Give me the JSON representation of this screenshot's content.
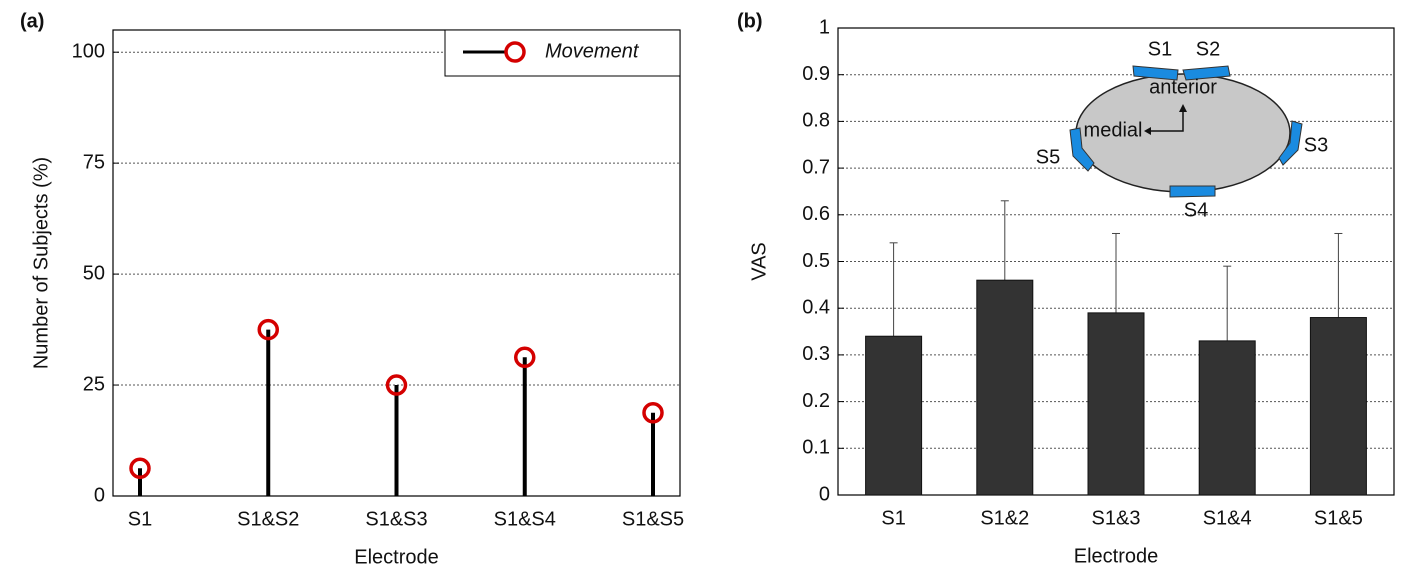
{
  "chart_data": [
    {
      "type": "stem",
      "panel_label": "(a)",
      "xlabel": "Electrode",
      "ylabel": "Number of Subjects (%)",
      "categories": [
        "S1",
        "S1&S2",
        "S1&S3",
        "S1&S4",
        "S1&S5"
      ],
      "series": [
        {
          "name": "Movement",
          "color": "#d40000",
          "values": [
            6.25,
            37.5,
            25,
            31.25,
            18.75
          ]
        }
      ],
      "stem_color": "#000000",
      "ylim": [
        0,
        105
      ],
      "yticks": [
        0,
        25,
        50,
        75,
        100
      ],
      "grid": true,
      "legend": "top-right"
    },
    {
      "type": "bar",
      "panel_label": "(b)",
      "xlabel": "Electrode",
      "ylabel": "VAS",
      "categories": [
        "S1",
        "S1&2",
        "S1&3",
        "S1&4",
        "S1&5"
      ],
      "values": [
        0.34,
        0.46,
        0.39,
        0.33,
        0.38
      ],
      "errors": [
        0.2,
        0.17,
        0.17,
        0.16,
        0.18
      ],
      "color": "#333333",
      "ylim": [
        0,
        1
      ],
      "yticks": [
        0,
        0.1,
        0.2,
        0.3,
        0.4,
        0.5,
        0.6,
        0.7,
        0.8,
        0.9,
        1
      ],
      "grid": true,
      "annotations": [
        "S1",
        "S2",
        "S3",
        "S4",
        "S5",
        "anterior",
        "medial"
      ]
    }
  ]
}
